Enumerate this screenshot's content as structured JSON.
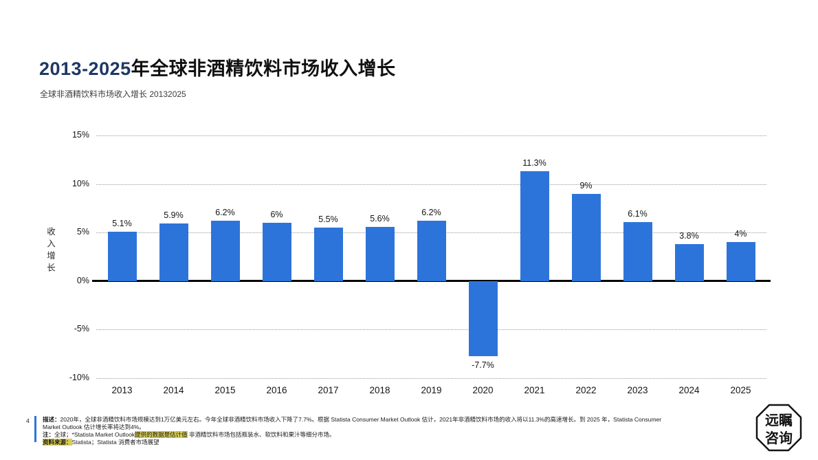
{
  "page": {
    "page_number": "4"
  },
  "header": {
    "title_prefix": "2013-2025",
    "title_main": "年全球非酒精饮料市场收入增长",
    "subtitle": "全球非酒精饮料市场收入增长 20132025"
  },
  "chart_data": {
    "type": "bar",
    "title": "2013-2025年全球非酒精饮料市场收入增长",
    "categories": [
      "2013",
      "2014",
      "2015",
      "2016",
      "2017",
      "2018",
      "2019",
      "2020",
      "2021",
      "2022",
      "2023",
      "2024",
      "2025"
    ],
    "values": [
      5.1,
      5.9,
      6.2,
      6.0,
      5.5,
      5.6,
      6.2,
      -7.7,
      11.3,
      9.0,
      6.1,
      3.8,
      4.0
    ],
    "labels": [
      "5.1%",
      "5.9%",
      "6.2%",
      "6%",
      "5.5%",
      "5.6%",
      "6.2%",
      "-7.7%",
      "11.3%",
      "9%",
      "6.1%",
      "3.8%",
      "4%"
    ],
    "xlabel": "",
    "ylabel": "收入增长",
    "ylim": [
      -10,
      15
    ],
    "yticks": [
      15,
      10,
      5,
      0,
      -5,
      -10
    ],
    "ytick_labels": [
      "15%",
      "10%",
      "5%",
      "0%",
      "-5%",
      "-10%"
    ],
    "bar_color": "#2d74da",
    "grid": "horizontal-dotted",
    "legend": "none"
  },
  "footer": {
    "desc_label": "描述：",
    "desc_text": "2020年，全球非酒精饮料市场规模达到1万亿美元左右。今年全球非酒精饮料市场收入下降了7.7%。根据 Statista Consumer Market Outlook 估计，2021年非酒精饮料市场的收入将以11.3%的高速增长。到 2025 年，Statista Consumer Market Outlook 估计增长率将达到4%。",
    "note_label": "注：",
    "note_pre": "全球；*Statista Market Outlook",
    "note_highlight": "提供的数据是估计值",
    "note_post": " 非酒精饮料市场包括瓶装水、软饮料和果汁等细分市场。",
    "source_label": "资料来源：",
    "source_text": "Statista；Statista 消费者市场展望"
  },
  "logo": {
    "line1": "远瞩",
    "line2": "咨询"
  }
}
